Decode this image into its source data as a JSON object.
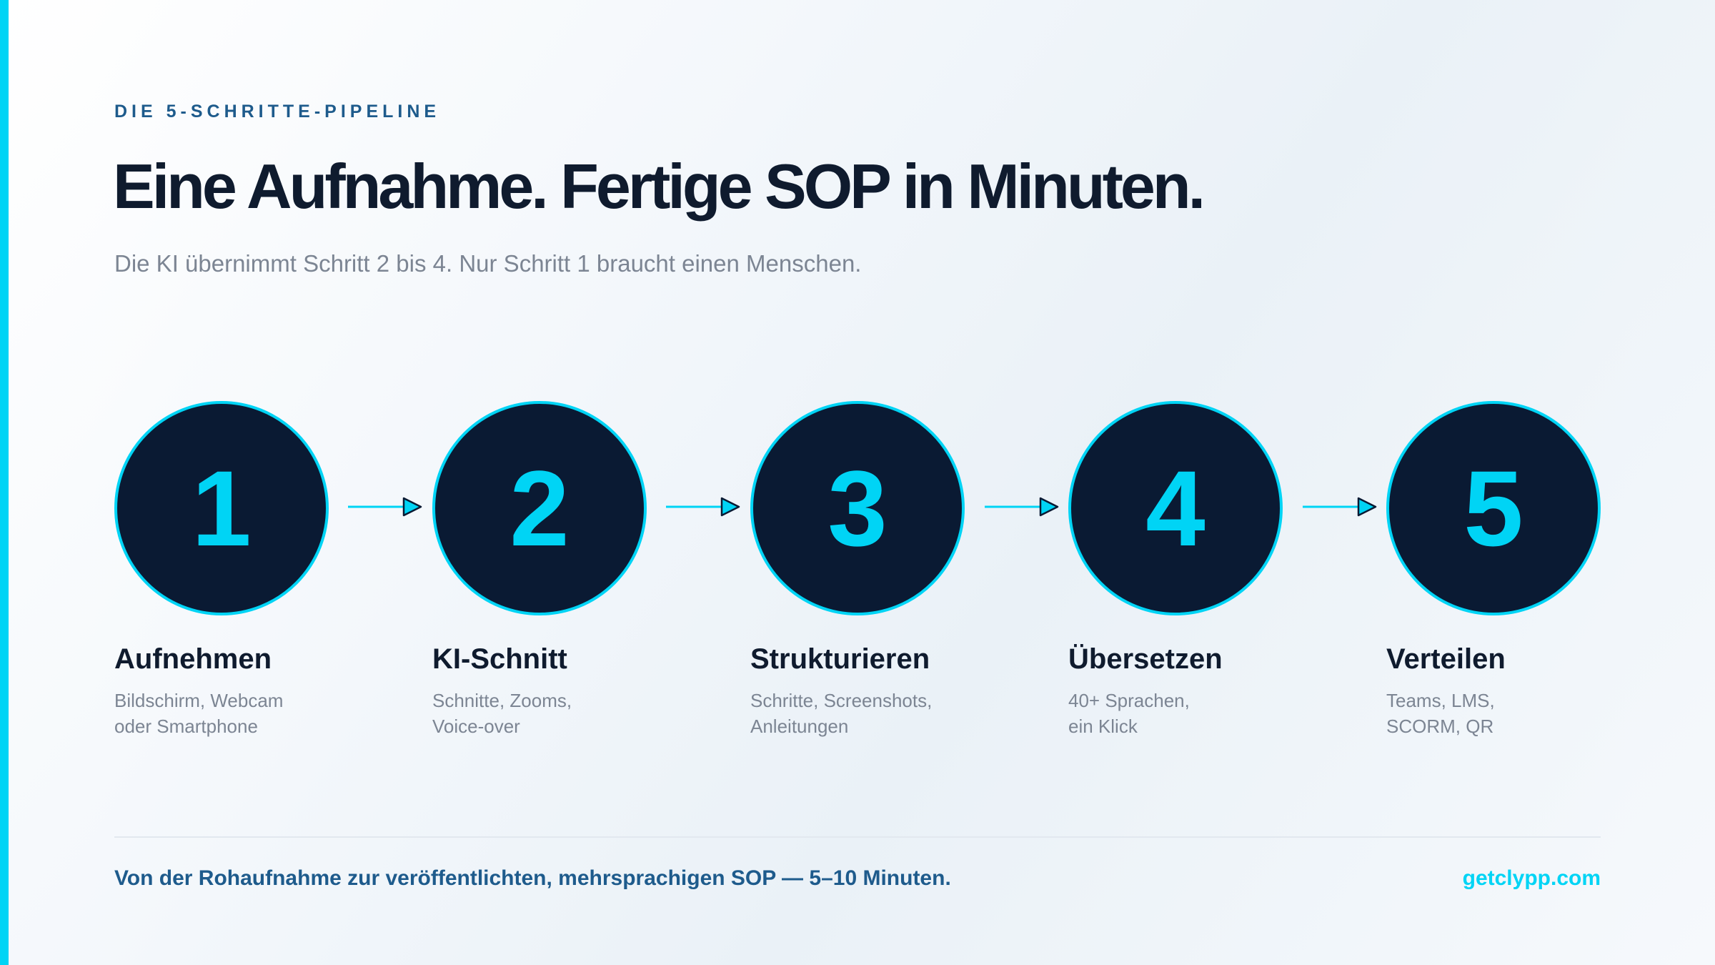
{
  "eyebrow": "DIE 5-SCHRITTE-PIPELINE",
  "headline": "Eine Aufnahme. Fertige SOP in Minuten.",
  "subtitle": "Die KI übernimmt Schritt 2 bis 4. Nur Schritt 1 braucht einen Menschen.",
  "steps": [
    {
      "number": "1",
      "title": "Aufnehmen",
      "desc_line1": "Bildschirm, Webcam",
      "desc_line2": "oder Smartphone"
    },
    {
      "number": "2",
      "title": "KI-Schnitt",
      "desc_line1": "Schnitte, Zooms,",
      "desc_line2": "Voice-over"
    },
    {
      "number": "3",
      "title": "Strukturieren",
      "desc_line1": "Schritte, Screenshots,",
      "desc_line2": "Anleitungen"
    },
    {
      "number": "4",
      "title": "Übersetzen",
      "desc_line1": "40+ Sprachen,",
      "desc_line2": "ein Klick"
    },
    {
      "number": "5",
      "title": "Verteilen",
      "desc_line1": "Teams, LMS,",
      "desc_line2": "SCORM, QR"
    }
  ],
  "footer": {
    "note": "Von der Rohaufnahme zur veröffentlichten, mehrsprachigen SOP — 5–10 Minuten.",
    "link": "getclypp.com"
  },
  "colors": {
    "accent": "#00d4f5",
    "circle_fill": "#0a1a33",
    "heading": "#0f1b2e",
    "muted": "#7c8593",
    "eyebrow": "#1e5b8c"
  },
  "icons": {
    "arrow": "arrow-right-icon"
  }
}
